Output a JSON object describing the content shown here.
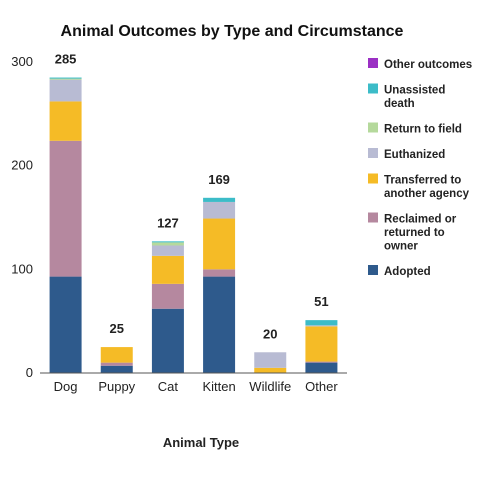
{
  "chart_data": {
    "type": "bar",
    "stacked": true,
    "title": "Animal Outcomes by Type and Circumstance",
    "xlabel": "Animal Type",
    "ylabel": "",
    "ylim": [
      0,
      300
    ],
    "yticks": [
      0,
      100,
      200,
      300
    ],
    "grid": false,
    "legend_position": "right",
    "categories": [
      "Dog",
      "Puppy",
      "Cat",
      "Kitten",
      "Wildlife",
      "Other"
    ],
    "totals": [
      "285",
      "25",
      "127",
      "169",
      "20",
      "51"
    ],
    "series": [
      {
        "name": "Adopted",
        "color": "#2e5a8c",
        "values": [
          93,
          7,
          62,
          93,
          0,
          10
        ]
      },
      {
        "name": "Reclaimed or returned to owner",
        "color": "#b5889f",
        "values": [
          131,
          3,
          24,
          7,
          0,
          1
        ]
      },
      {
        "name": "Transferred to another agency",
        "color": "#f5bb26",
        "values": [
          38,
          15,
          27,
          49,
          5,
          34
        ]
      },
      {
        "name": "Euthanized",
        "color": "#b8bbd3",
        "values": [
          21,
          0,
          10,
          16,
          15,
          1
        ]
      },
      {
        "name": "Return to field",
        "color": "#b5d99c",
        "values": [
          1,
          0,
          3,
          0,
          0,
          0
        ]
      },
      {
        "name": "Unassisted death",
        "color": "#3cbcc8",
        "values": [
          1,
          0,
          1,
          4,
          0,
          5
        ]
      },
      {
        "name": "Other outcomes",
        "color": "#9b30c4",
        "values": [
          0,
          0,
          0,
          0,
          0,
          0
        ]
      }
    ],
    "legend_order": [
      "Other outcomes",
      "Unassisted death",
      "Return to field",
      "Euthanized",
      "Transferred to another agency",
      "Reclaimed or returned to owner",
      "Adopted"
    ]
  }
}
